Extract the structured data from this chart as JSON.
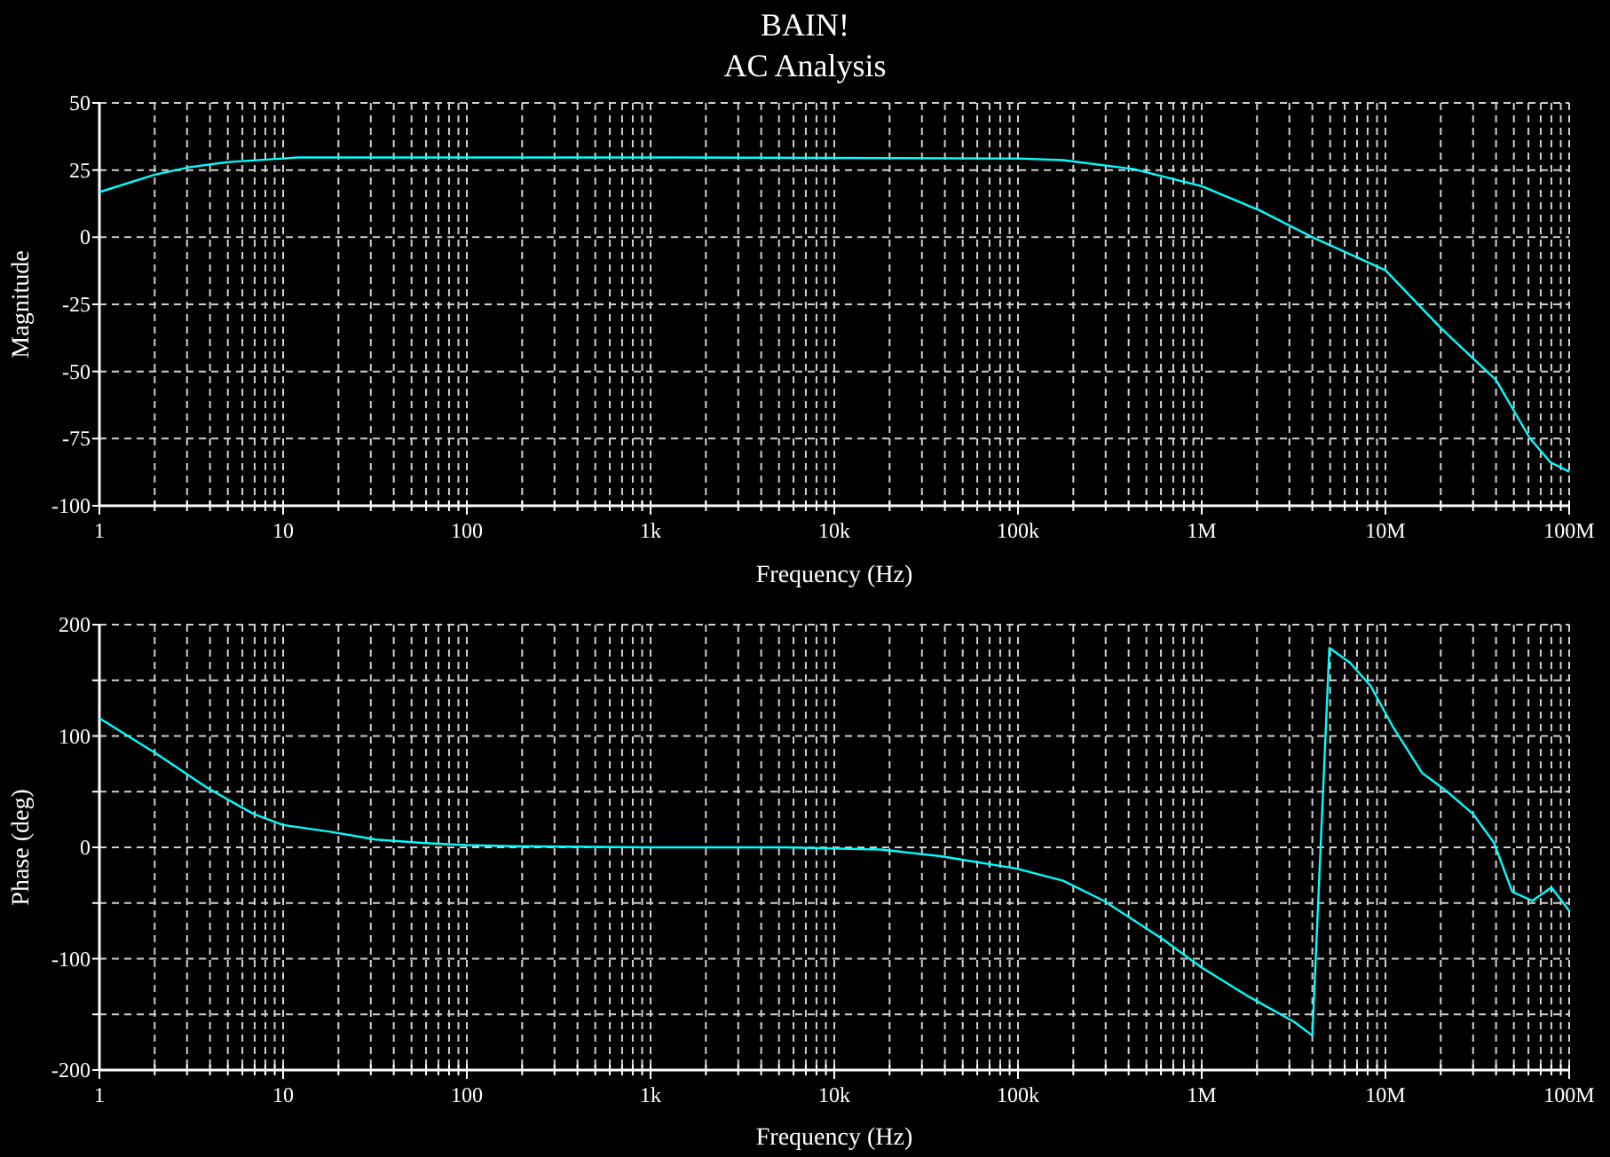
{
  "chart_data": [
    {
      "type": "line",
      "title": "BAIN!",
      "subtitle": "AC Analysis",
      "xlabel": "Frequency (Hz)",
      "ylabel": "Magnitude",
      "log": "x",
      "grid": true,
      "line_style": "solid",
      "marker": "none",
      "xlim": [
        1,
        100000000
      ],
      "xticks": [
        {
          "value": 1,
          "label": "1"
        },
        {
          "value": 2,
          "label": null
        },
        {
          "value": 3,
          "label": null
        },
        {
          "value": 4,
          "label": null
        },
        {
          "value": 5,
          "label": null
        },
        {
          "value": 6,
          "label": null
        },
        {
          "value": 7,
          "label": null
        },
        {
          "value": 8,
          "label": null
        },
        {
          "value": 9,
          "label": null
        },
        {
          "value": 10,
          "label": "10"
        },
        {
          "value": 20,
          "label": null
        },
        {
          "value": 30,
          "label": null
        },
        {
          "value": 40,
          "label": null
        },
        {
          "value": 50,
          "label": null
        },
        {
          "value": 60,
          "label": null
        },
        {
          "value": 70,
          "label": null
        },
        {
          "value": 80,
          "label": null
        },
        {
          "value": 90,
          "label": null
        },
        {
          "value": 100,
          "label": "100"
        },
        {
          "value": 200,
          "label": null
        },
        {
          "value": 300,
          "label": null
        },
        {
          "value": 400,
          "label": null
        },
        {
          "value": 500,
          "label": null
        },
        {
          "value": 600,
          "label": null
        },
        {
          "value": 700,
          "label": null
        },
        {
          "value": 800,
          "label": null
        },
        {
          "value": 900,
          "label": null
        },
        {
          "value": 1000,
          "label": "1k"
        },
        {
          "value": 2000,
          "label": null
        },
        {
          "value": 3000,
          "label": null
        },
        {
          "value": 4000,
          "label": null
        },
        {
          "value": 5000,
          "label": null
        },
        {
          "value": 6000,
          "label": null
        },
        {
          "value": 7000,
          "label": null
        },
        {
          "value": 8000,
          "label": null
        },
        {
          "value": 9000,
          "label": null
        },
        {
          "value": 10000,
          "label": "10k"
        },
        {
          "value": 20000,
          "label": null
        },
        {
          "value": 30000,
          "label": null
        },
        {
          "value": 40000,
          "label": null
        },
        {
          "value": 50000,
          "label": null
        },
        {
          "value": 60000,
          "label": null
        },
        {
          "value": 70000,
          "label": null
        },
        {
          "value": 80000,
          "label": null
        },
        {
          "value": 90000,
          "label": null
        },
        {
          "value": 100000,
          "label": "100k"
        },
        {
          "value": 200000,
          "label": null
        },
        {
          "value": 300000,
          "label": null
        },
        {
          "value": 400000,
          "label": null
        },
        {
          "value": 500000,
          "label": null
        },
        {
          "value": 600000,
          "label": null
        },
        {
          "value": 700000,
          "label": null
        },
        {
          "value": 800000,
          "label": null
        },
        {
          "value": 900000,
          "label": null
        },
        {
          "value": 1000000,
          "label": "1M"
        },
        {
          "value": 2000000,
          "label": null
        },
        {
          "value": 3000000,
          "label": null
        },
        {
          "value": 4000000,
          "label": null
        },
        {
          "value": 5000000,
          "label": null
        },
        {
          "value": 6000000,
          "label": null
        },
        {
          "value": 7000000,
          "label": null
        },
        {
          "value": 8000000,
          "label": null
        },
        {
          "value": 9000000,
          "label": null
        },
        {
          "value": 10000000,
          "label": "10M"
        },
        {
          "value": 20000000,
          "label": null
        },
        {
          "value": 30000000,
          "label": null
        },
        {
          "value": 40000000,
          "label": null
        },
        {
          "value": 50000000,
          "label": null
        },
        {
          "value": 60000000,
          "label": null
        },
        {
          "value": 70000000,
          "label": null
        },
        {
          "value": 80000000,
          "label": null
        },
        {
          "value": 90000000,
          "label": null
        },
        {
          "value": 100000000,
          "label": "100M"
        }
      ],
      "ylim": [
        -100,
        50
      ],
      "yticks": [
        -100,
        -75,
        -50,
        -25,
        0,
        25,
        50
      ],
      "series": [
        {
          "color": "#00ffff",
          "x": [
            1,
            2,
            3.1,
            5,
            10,
            12,
            1000,
            100000,
            176000,
            422000,
            1000000,
            2080000,
            4000000,
            10000000,
            20000000,
            40000000,
            61000000,
            79000000,
            100000000
          ],
          "values": [
            16.8,
            23.3,
            26.1,
            28,
            29.3,
            29.7,
            29.7,
            29.3,
            28.7,
            25.4,
            19,
            9.9,
            0,
            -12.3,
            -33.8,
            -53.2,
            -74.8,
            -83.8,
            -87.3
          ]
        }
      ]
    },
    {
      "type": "line",
      "xlabel": "Frequency (Hz)",
      "ylabel": "Phase (deg)",
      "log": "x",
      "grid": true,
      "line_style": "solid",
      "marker": "none",
      "xlim": [
        1,
        100000000
      ],
      "xticks": [
        {
          "value": 1,
          "label": "1"
        },
        {
          "value": 2,
          "label": null
        },
        {
          "value": 3,
          "label": null
        },
        {
          "value": 4,
          "label": null
        },
        {
          "value": 5,
          "label": null
        },
        {
          "value": 6,
          "label": null
        },
        {
          "value": 7,
          "label": null
        },
        {
          "value": 8,
          "label": null
        },
        {
          "value": 9,
          "label": null
        },
        {
          "value": 10,
          "label": "10"
        },
        {
          "value": 20,
          "label": null
        },
        {
          "value": 30,
          "label": null
        },
        {
          "value": 40,
          "label": null
        },
        {
          "value": 50,
          "label": null
        },
        {
          "value": 60,
          "label": null
        },
        {
          "value": 70,
          "label": null
        },
        {
          "value": 80,
          "label": null
        },
        {
          "value": 90,
          "label": null
        },
        {
          "value": 100,
          "label": "100"
        },
        {
          "value": 200,
          "label": null
        },
        {
          "value": 300,
          "label": null
        },
        {
          "value": 400,
          "label": null
        },
        {
          "value": 500,
          "label": null
        },
        {
          "value": 600,
          "label": null
        },
        {
          "value": 700,
          "label": null
        },
        {
          "value": 800,
          "label": null
        },
        {
          "value": 900,
          "label": null
        },
        {
          "value": 1000,
          "label": "1k"
        },
        {
          "value": 2000,
          "label": null
        },
        {
          "value": 3000,
          "label": null
        },
        {
          "value": 4000,
          "label": null
        },
        {
          "value": 5000,
          "label": null
        },
        {
          "value": 6000,
          "label": null
        },
        {
          "value": 7000,
          "label": null
        },
        {
          "value": 8000,
          "label": null
        },
        {
          "value": 9000,
          "label": null
        },
        {
          "value": 10000,
          "label": "10k"
        },
        {
          "value": 20000,
          "label": null
        },
        {
          "value": 30000,
          "label": null
        },
        {
          "value": 40000,
          "label": null
        },
        {
          "value": 50000,
          "label": null
        },
        {
          "value": 60000,
          "label": null
        },
        {
          "value": 70000,
          "label": null
        },
        {
          "value": 80000,
          "label": null
        },
        {
          "value": 90000,
          "label": null
        },
        {
          "value": 100000,
          "label": "100k"
        },
        {
          "value": 200000,
          "label": null
        },
        {
          "value": 300000,
          "label": null
        },
        {
          "value": 400000,
          "label": null
        },
        {
          "value": 500000,
          "label": null
        },
        {
          "value": 600000,
          "label": null
        },
        {
          "value": 700000,
          "label": null
        },
        {
          "value": 800000,
          "label": null
        },
        {
          "value": 900000,
          "label": null
        },
        {
          "value": 1000000,
          "label": "1M"
        },
        {
          "value": 2000000,
          "label": null
        },
        {
          "value": 3000000,
          "label": null
        },
        {
          "value": 4000000,
          "label": null
        },
        {
          "value": 5000000,
          "label": null
        },
        {
          "value": 6000000,
          "label": null
        },
        {
          "value": 7000000,
          "label": null
        },
        {
          "value": 8000000,
          "label": null
        },
        {
          "value": 9000000,
          "label": null
        },
        {
          "value": 10000000,
          "label": "10M"
        },
        {
          "value": 20000000,
          "label": null
        },
        {
          "value": 30000000,
          "label": null
        },
        {
          "value": 40000000,
          "label": null
        },
        {
          "value": 50000000,
          "label": null
        },
        {
          "value": 60000000,
          "label": null
        },
        {
          "value": 70000000,
          "label": null
        },
        {
          "value": 80000000,
          "label": null
        },
        {
          "value": 90000000,
          "label": null
        },
        {
          "value": 100000000,
          "label": "100M"
        }
      ],
      "ylim": [
        -200,
        200
      ],
      "yticks": [
        -200,
        {
          "value": -150,
          "label": null
        },
        -100,
        {
          "value": -50,
          "label": null
        },
        0,
        {
          "value": 50,
          "label": null
        },
        100,
        {
          "value": 150,
          "label": null
        },
        200
      ],
      "series": [
        {
          "color": "#00ffff",
          "x": [
            1,
            2,
            3.9,
            6.9,
            10,
            18,
            32,
            57,
            100,
            185,
            1000,
            5400,
            18000,
            38000,
            98000,
            176000,
            293000,
            608000,
            1000000,
            1800000,
            3200000,
            4000000,
            4950000,
            6400000,
            8300000,
            11000000,
            15800000,
            21300000,
            30000000,
            39000000,
            49000000,
            63000000,
            80000000,
            100000000
          ],
          "values": [
            116,
            85,
            53,
            30,
            20,
            14,
            7,
            4,
            2,
            1,
            0,
            0,
            -2,
            -8,
            -19,
            -30,
            -48,
            -82,
            -108,
            -134,
            -157,
            -169,
            179,
            166,
            145,
            108,
            67,
            51,
            30,
            4,
            -40,
            -48,
            -36,
            -57
          ]
        }
      ]
    }
  ]
}
